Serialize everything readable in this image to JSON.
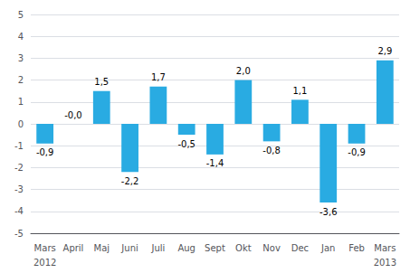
{
  "chart_data": {
    "type": "bar",
    "categories": [
      "Mars",
      "April",
      "Maj",
      "Juni",
      "Juli",
      "Aug",
      "Sept",
      "Okt",
      "Nov",
      "Dec",
      "Jan",
      "Feb",
      "Mars"
    ],
    "values": [
      -0.9,
      -0.0,
      1.5,
      -2.2,
      1.7,
      -0.5,
      -1.4,
      2.0,
      -0.8,
      1.1,
      -3.6,
      -0.9,
      2.9
    ],
    "value_labels": [
      "-0,9",
      "-0,0",
      "1,5",
      "-2,2",
      "1,7",
      "-0,5",
      "-1,4",
      "2,0",
      "-0,8",
      "1,1",
      "-3,6",
      "-0,9",
      "2,9"
    ],
    "data_labels": true,
    "color": "#29ABE2",
    "ylim": [
      -5,
      5
    ],
    "yticks": [
      -5,
      -4,
      -3,
      -2,
      -1,
      0,
      1,
      2,
      3,
      4,
      5
    ],
    "grid": true,
    "annotations": [
      {
        "text": "2012",
        "category_index": 0
      },
      {
        "text": "2013",
        "category_index": 12
      }
    ]
  }
}
